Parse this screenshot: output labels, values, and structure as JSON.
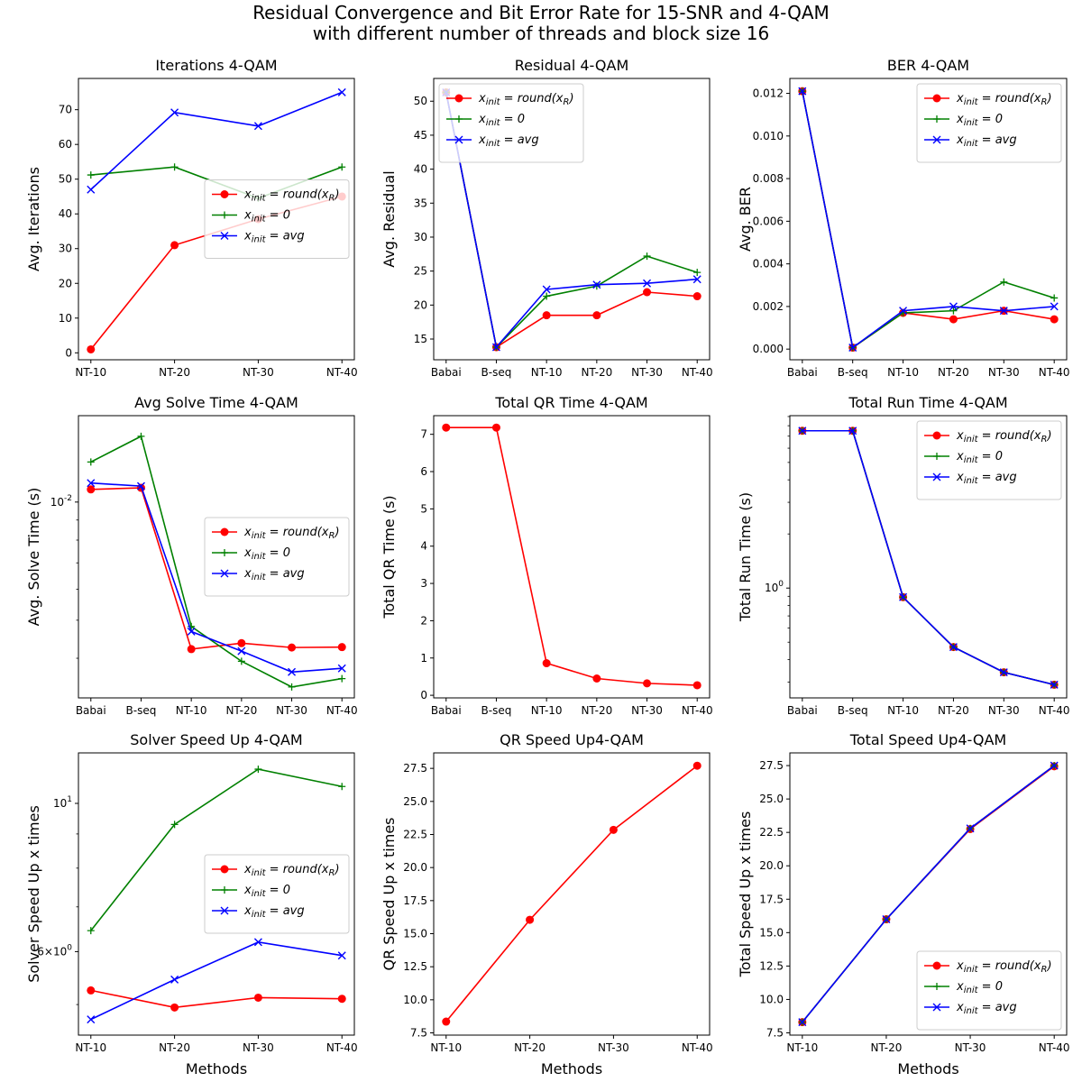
{
  "suptitle": {
    "line1": "Residual Convergence and Bit Error Rate for 15-SNR and 4-QAM",
    "line2": "with different number of threads and block size 16"
  },
  "colors": {
    "round": "#ff0000",
    "zero": "#008000",
    "avg": "#0000ff"
  },
  "legend_labels": {
    "round": "x_init = round(x_R)",
    "zero": "x_init = 0",
    "avg": "x_init = avg"
  },
  "chart_data": [
    {
      "id": "iter",
      "type": "line",
      "title": "Iterations 4-QAM",
      "xlabel": "",
      "ylabel": "Avg. Iterations",
      "categories": [
        "NT-10",
        "NT-20",
        "NT-30",
        "NT-40"
      ],
      "ylim": [
        -2,
        79
      ],
      "yscale": "linear",
      "yticks": [
        0,
        10,
        20,
        30,
        40,
        50,
        60,
        70
      ],
      "ytick_labels": [
        "0",
        "10",
        "20",
        "30",
        "40",
        "50",
        "60",
        "70"
      ],
      "legend": {
        "placement": "center-right"
      },
      "series": [
        {
          "key": "round",
          "values": [
            1,
            31,
            38.5,
            45
          ]
        },
        {
          "key": "zero",
          "values": [
            51.2,
            53.5,
            44.5,
            53.5
          ]
        },
        {
          "key": "avg",
          "values": [
            47,
            69.2,
            65.3,
            75
          ]
        }
      ]
    },
    {
      "id": "resid",
      "type": "line",
      "title": "Residual 4-QAM",
      "xlabel": "",
      "ylabel": "Avg. Residual",
      "categories": [
        "Babai",
        "B-seq",
        "NT-10",
        "NT-20",
        "NT-30",
        "NT-40"
      ],
      "ylim": [
        11.95,
        53.35
      ],
      "yscale": "linear",
      "yticks": [
        15,
        20,
        25,
        30,
        35,
        40,
        45,
        50
      ],
      "ytick_labels": [
        "15",
        "20",
        "25",
        "30",
        "35",
        "40",
        "45",
        "50"
      ],
      "legend": {
        "placement": "top-left"
      },
      "series": [
        {
          "key": "round",
          "values": [
            51.3,
            13.8,
            18.5,
            18.5,
            21.9,
            21.3
          ]
        },
        {
          "key": "zero",
          "values": [
            51.3,
            13.8,
            21.3,
            22.8,
            27.2,
            24.8
          ]
        },
        {
          "key": "avg",
          "values": [
            51.3,
            13.8,
            22.3,
            23.0,
            23.2,
            23.8
          ]
        }
      ]
    },
    {
      "id": "ber",
      "type": "line",
      "title": "BER 4-QAM",
      "xlabel": "",
      "ylabel": "Avg. BER",
      "categories": [
        "Babai",
        "B-seq",
        "NT-10",
        "NT-20",
        "NT-30",
        "NT-40"
      ],
      "ylim": [
        -0.0005,
        0.0127
      ],
      "yscale": "linear",
      "yticks": [
        0,
        0.002,
        0.004,
        0.006,
        0.008,
        0.01,
        0.012
      ],
      "ytick_labels": [
        "0.000",
        "0.002",
        "0.004",
        "0.006",
        "0.008",
        "0.010",
        "0.012"
      ],
      "legend": {
        "placement": "top-right"
      },
      "series": [
        {
          "key": "round",
          "values": [
            0.0121,
            7e-05,
            0.0017,
            0.0014,
            0.0018,
            0.0014
          ]
        },
        {
          "key": "zero",
          "values": [
            0.0121,
            7e-05,
            0.0017,
            0.0018,
            0.00315,
            0.0024
          ]
        },
        {
          "key": "avg",
          "values": [
            0.0121,
            7e-05,
            0.0018,
            0.002,
            0.0018,
            0.002
          ]
        }
      ]
    },
    {
      "id": "solve",
      "type": "line",
      "title": "Avg Solve Time 4-QAM",
      "xlabel": "",
      "ylabel": "Avg. Solve Time (s)",
      "categories": [
        "Babai",
        "B-seq",
        "NT-10",
        "NT-20",
        "NT-30",
        "NT-40"
      ],
      "ylim": [
        0.00317,
        0.0166
      ],
      "yscale": "log",
      "yticks": [
        0.01
      ],
      "ytick_labels": [
        "10^-2"
      ],
      "legend": {
        "placement": "center-right"
      },
      "series": [
        {
          "key": "round",
          "values": [
            0.01077,
            0.01087,
            0.00422,
            0.00437,
            0.00426,
            0.00427
          ]
        },
        {
          "key": "zero",
          "values": [
            0.01265,
            0.01471,
            0.00482,
            0.00393,
            0.00338,
            0.00355
          ]
        },
        {
          "key": "avg",
          "values": [
            0.01118,
            0.01098,
            0.00468,
            0.00417,
            0.00369,
            0.00377
          ]
        }
      ]
    },
    {
      "id": "qr",
      "type": "line",
      "title": "Total QR Time 4-QAM",
      "xlabel": "",
      "ylabel": "Total QR Time (s)",
      "categories": [
        "Babai",
        "B-seq",
        "NT-10",
        "NT-20",
        "NT-30",
        "NT-40"
      ],
      "ylim": [
        -0.07,
        7.5
      ],
      "yscale": "linear",
      "yticks": [
        0,
        1,
        2,
        3,
        4,
        5,
        6,
        7
      ],
      "ytick_labels": [
        "0",
        "1",
        "2",
        "3",
        "4",
        "5",
        "6",
        "7"
      ],
      "legend": null,
      "series": [
        {
          "key": "round",
          "values": [
            7.18,
            7.18,
            0.86,
            0.45,
            0.32,
            0.27
          ]
        }
      ]
    },
    {
      "id": "run",
      "type": "line",
      "title": "Total Run Time 4-QAM",
      "xlabel": "",
      "ylabel": "Total Run Time (s)",
      "categories": [
        "Babai",
        "B-seq",
        "NT-10",
        "NT-20",
        "NT-30",
        "NT-40"
      ],
      "ylim": [
        0.245,
        9.1
      ],
      "yscale": "log",
      "yticks": [
        1
      ],
      "ytick_labels": [
        "10^0"
      ],
      "legend": {
        "placement": "top-right"
      },
      "series": [
        {
          "key": "round",
          "values": [
            7.5,
            7.5,
            0.89,
            0.47,
            0.34,
            0.29
          ]
        },
        {
          "key": "zero",
          "values": [
            7.5,
            7.5,
            0.89,
            0.47,
            0.34,
            0.29
          ]
        },
        {
          "key": "avg",
          "values": [
            7.5,
            7.5,
            0.89,
            0.47,
            0.34,
            0.29
          ]
        }
      ]
    },
    {
      "id": "sspeed",
      "type": "line",
      "title": "Solver Speed Up 4-QAM",
      "xlabel": "Methods",
      "ylabel": "Solver Speed Up x times",
      "categories": [
        "NT-10",
        "NT-20",
        "NT-30",
        "NT-40"
      ],
      "ylim": [
        4.5,
        11.9
      ],
      "yscale": "log",
      "yticks": [
        6,
        10
      ],
      "ytick_labels": [
        "6x10^0",
        "10^1"
      ],
      "legend": {
        "placement": "center-right"
      },
      "series": [
        {
          "key": "round",
          "values": [
            5.25,
            4.95,
            5.12,
            5.1
          ]
        },
        {
          "key": "zero",
          "values": [
            6.45,
            9.3,
            11.25,
            10.6
          ]
        },
        {
          "key": "avg",
          "values": [
            4.75,
            5.45,
            6.2,
            5.92
          ]
        }
      ]
    },
    {
      "id": "qrspeed",
      "type": "line",
      "title": "QR Speed Up4-QAM",
      "xlabel": "Methods",
      "ylabel": "QR Speed Up x times",
      "categories": [
        "NT-10",
        "NT-20",
        "NT-30",
        "NT-40"
      ],
      "ylim": [
        7.33,
        28.67
      ],
      "yscale": "linear",
      "yticks": [
        7.5,
        10,
        12.5,
        15,
        17.5,
        20,
        22.5,
        25,
        27.5
      ],
      "ytick_labels": [
        "7.5",
        "10.0",
        "12.5",
        "15.0",
        "17.5",
        "20.0",
        "22.5",
        "25.0",
        "27.5"
      ],
      "legend": null,
      "series": [
        {
          "key": "round",
          "values": [
            8.35,
            16.05,
            22.85,
            27.7
          ]
        }
      ]
    },
    {
      "id": "tspeed",
      "type": "line",
      "title": "Total Speed Up4-QAM",
      "xlabel": "Methods",
      "ylabel": "Total Speed Up x times",
      "categories": [
        "NT-10",
        "NT-20",
        "NT-30",
        "NT-40"
      ],
      "ylim": [
        7.33,
        28.45
      ],
      "yscale": "linear",
      "yticks": [
        7.5,
        10,
        12.5,
        15,
        17.5,
        20,
        22.5,
        25,
        27.5
      ],
      "ytick_labels": [
        "7.5",
        "10.0",
        "12.5",
        "15.0",
        "17.5",
        "20.0",
        "22.5",
        "25.0",
        "27.5"
      ],
      "legend": {
        "placement": "bottom-right"
      },
      "series": [
        {
          "key": "round",
          "values": [
            8.3,
            16.0,
            22.75,
            27.45
          ]
        },
        {
          "key": "zero",
          "values": [
            8.3,
            16.0,
            22.8,
            27.5
          ]
        },
        {
          "key": "avg",
          "values": [
            8.3,
            16.0,
            22.8,
            27.5
          ]
        }
      ]
    }
  ]
}
